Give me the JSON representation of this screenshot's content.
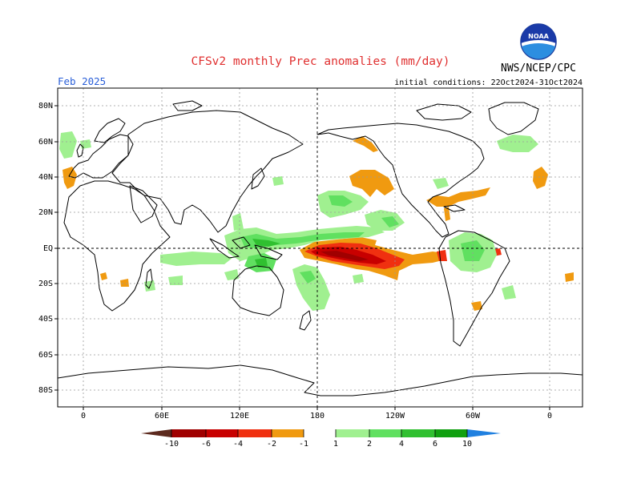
{
  "title": "CFSv2 monthly Prec anomalies (mm/day)",
  "valid_month": "Feb 2025",
  "agency": "NWS/NCEP/CPC",
  "logo_text": "NOAA",
  "initial_conditions": "initial conditions: 22Oct2024-31Oct2024",
  "map": {
    "lat_labels": [
      "80N",
      "60N",
      "40N",
      "20N",
      "EQ",
      "20S",
      "40S",
      "60S",
      "80S"
    ],
    "lon_labels": [
      "0",
      "60E",
      "120E",
      "180",
      "120W",
      "60W",
      "0"
    ]
  },
  "colorbar": {
    "ticks": [
      "-10",
      "-6",
      "-4",
      "-2",
      "-1",
      "1",
      "2",
      "4",
      "6",
      "10"
    ],
    "colors": {
      "lt_neg10": "#5c2a1e",
      "neg10_neg6": "#a00000",
      "neg6_neg4": "#c80000",
      "neg4_neg2": "#f03010",
      "neg2_neg1": "#f09a10",
      "pos1_pos2": "#a0f090",
      "pos2_pos4": "#60e060",
      "pos4_pos6": "#30c030",
      "pos6_pos10": "#10a010",
      "gt_pos10": "#2080e0"
    }
  }
}
